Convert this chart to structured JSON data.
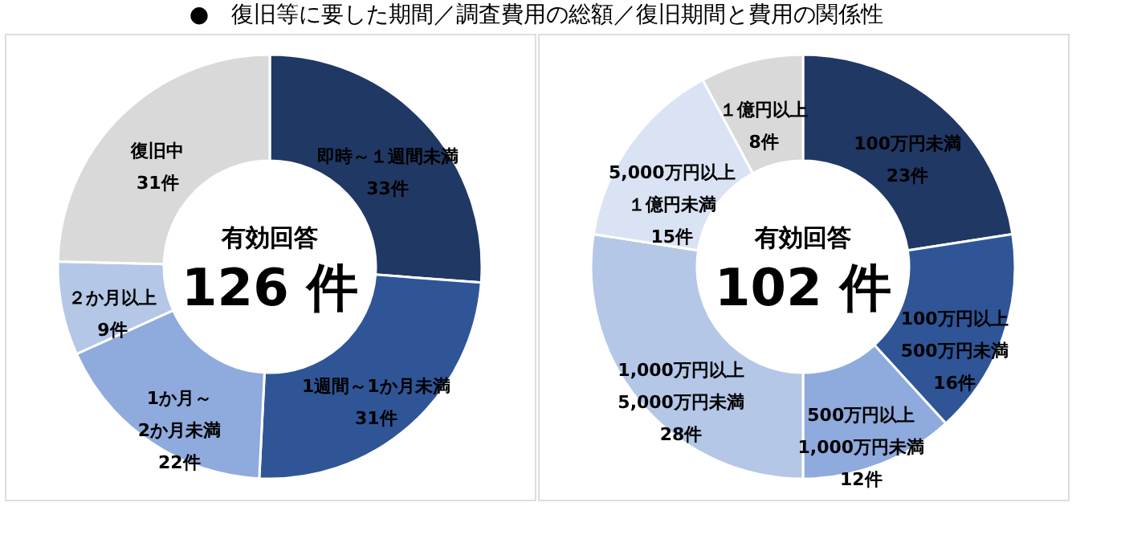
{
  "chart_data": [
    {
      "type": "donut",
      "title": "●　復旧等に要した期間／調査費用の総額／復旧期間と費用の関係性",
      "categories": [
        "即時～１週間未満",
        "1週間～1か月未満",
        "1か月～\n2か月未満",
        "２か月以上",
        "復旧中"
      ],
      "values": [
        33,
        31,
        22,
        9,
        31
      ],
      "value_labels": [
        "33件",
        "31件",
        "22件",
        "9件",
        "31件"
      ],
      "colors": [
        "#203864",
        "#2f5597",
        "#8faadc",
        "#b4c7e7",
        "#d9d9d9"
      ],
      "annotations": [
        "有効回答",
        "126 件"
      ]
    },
    {
      "type": "donut",
      "categories": [
        "100万円未満",
        "100万円以上\n500万円未満",
        "500万円以上\n1,000万円未満",
        "1,000万円以上\n5,000万円未満",
        "5,000万円以上１億円未満",
        "１億円以上"
      ],
      "values": [
        23,
        16,
        12,
        28,
        15,
        8
      ],
      "value_labels": [
        "23件",
        "16件",
        "12件",
        "28件",
        "15件",
        "8件"
      ],
      "colors": [
        "#203864",
        "#2f5597",
        "#8faadc",
        "#b4c7e7",
        "#dae3f3",
        "#d9d9d9"
      ],
      "annotations": [
        "有効回答",
        "102 件"
      ]
    }
  ]
}
